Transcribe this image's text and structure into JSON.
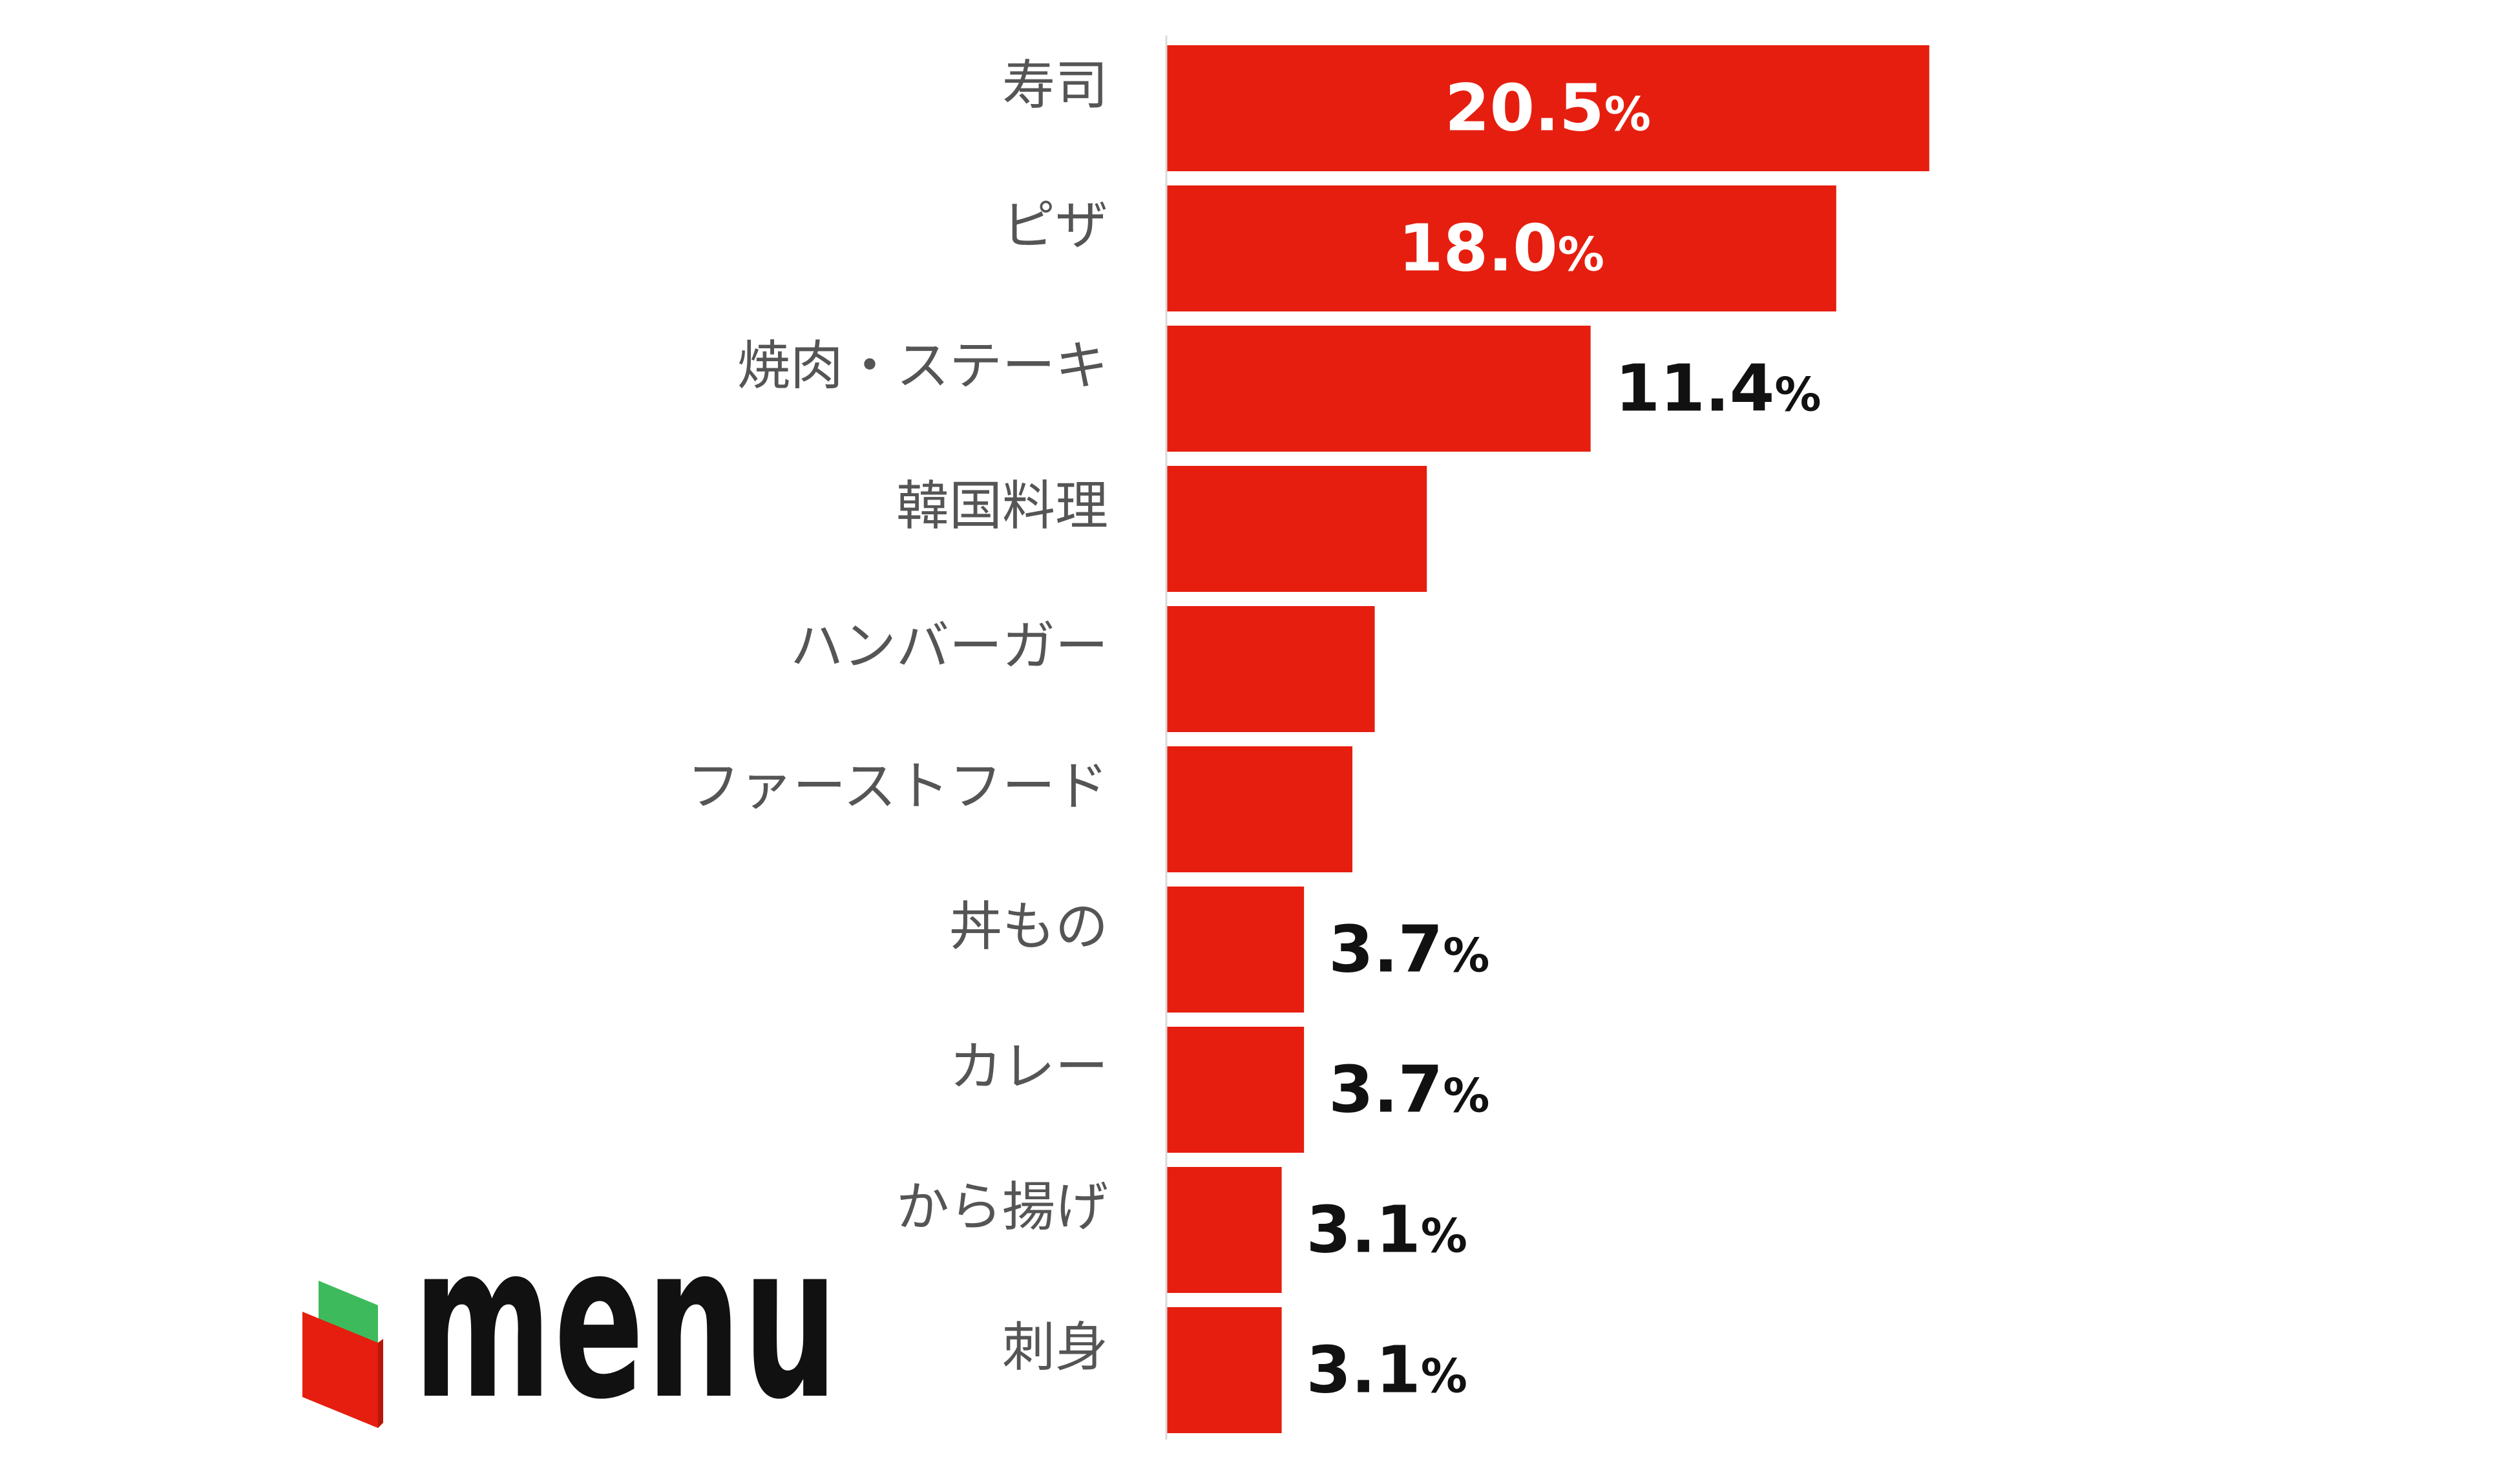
{
  "chart_data": {
    "type": "bar",
    "orientation": "horizontal",
    "categories": [
      "寿司",
      "ピザ",
      "焼肉・ステーキ",
      "韓国料理",
      "ハンバーガー",
      "ファーストフード",
      "丼もの",
      "カレー",
      "から揚げ",
      "刺身"
    ],
    "values": [
      20.5,
      18.0,
      11.4,
      7.0,
      5.6,
      5.0,
      3.7,
      3.7,
      3.1,
      3.1
    ],
    "value_labels": [
      "20.5",
      "18.0",
      "11.4",
      "",
      "",
      "",
      "3.7",
      "3.7",
      "3.1",
      "3.1"
    ],
    "value_suffix": "%",
    "xlim": [
      0,
      25
    ],
    "grid": false,
    "bar_color": "#e61e0f",
    "label_inside_color": "#ffffff",
    "label_outside_color": "#111111"
  },
  "logo": {
    "text": "menu",
    "icon": "menu-box-logo-icon",
    "colors": {
      "red": "#e61e0f",
      "green": "#3dbb5c",
      "text": "#111111"
    }
  }
}
